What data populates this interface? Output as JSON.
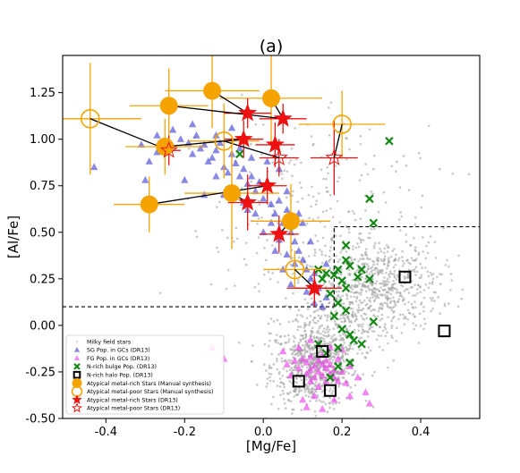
{
  "chart_data": {
    "type": "scatter",
    "title": "(a)",
    "xlabel": "[Mg/Fe]",
    "ylabel": "[Al/Fe]",
    "xlim": [
      -0.51,
      0.55
    ],
    "ylim": [
      -0.5,
      1.45
    ],
    "xticks": [
      "-0.4",
      "-0.2",
      "0.0",
      "0.2",
      "0.4"
    ],
    "xtick_values": [
      -0.4,
      -0.2,
      0.0,
      0.2,
      0.4
    ],
    "yticks": [
      "-0.50",
      "-0.25",
      "0.00",
      "0.25",
      "0.50",
      "0.75",
      "1.00",
      "1.25"
    ],
    "ytick_values": [
      -0.5,
      -0.25,
      0.0,
      0.25,
      0.5,
      0.75,
      1.0,
      1.25
    ],
    "grid": false,
    "legend_position": "lower-left",
    "colors": {
      "field": "#9a9a9a",
      "sg": "#3b3bd0",
      "fg": "#ee33ee",
      "nbulge": "#118811",
      "nhalo": "#000000",
      "orange": "#f5a300",
      "red": "#ee1111"
    },
    "legend": [
      {
        "label": "Milky field stars",
        "marker": "field"
      },
      {
        "label": "SG Pop. in GCs (DR13)",
        "marker": "sg"
      },
      {
        "label": "FG Pop. in GCs (DR13)",
        "marker": "fg"
      },
      {
        "label": "N-rich bulge Pop. (DR13)",
        "marker": "nbulge"
      },
      {
        "label": "N-rich halo Pop. (DR13)",
        "marker": "nhalo"
      },
      {
        "label": "Atypical metal-rich Stars (Manual synthesis)",
        "marker": "orange_filled"
      },
      {
        "label": "Atypical metal-poor Stars (Manual synthesis)",
        "marker": "orange_open"
      },
      {
        "label": "Atypical metal-rich Stars (DR13)",
        "marker": "red_filled"
      },
      {
        "label": "Atypical metal-poor Stars (DR13)",
        "marker": "red_open"
      }
    ],
    "boundary_lines": [
      {
        "style": "dashed",
        "x": [
          -0.51,
          0.18
        ],
        "y": [
          0.1,
          0.1
        ]
      },
      {
        "style": "dashed",
        "x": [
          0.18,
          0.18
        ],
        "y": [
          0.1,
          0.53
        ]
      },
      {
        "style": "dashed",
        "x": [
          0.18,
          0.55
        ],
        "y": [
          0.53,
          0.53
        ]
      }
    ],
    "series": [
      {
        "name": "Milky field stars",
        "role": "field",
        "clusters": [
          {
            "cx": 0.13,
            "cy": -0.22,
            "sx": 0.055,
            "sy": 0.11,
            "n": 700
          },
          {
            "cx": 0.3,
            "cy": 0.23,
            "sx": 0.075,
            "sy": 0.12,
            "n": 550
          },
          {
            "cx": 0.2,
            "cy": 0.03,
            "sx": 0.07,
            "sy": 0.12,
            "n": 300
          },
          {
            "cx": 0.07,
            "cy": 0.55,
            "sx": 0.1,
            "sy": 0.25,
            "n": 160
          },
          {
            "cx": 0.25,
            "cy": 0.75,
            "sx": 0.16,
            "sy": 0.25,
            "n": 90
          }
        ]
      },
      {
        "name": "SG Pop. in GCs (DR13)",
        "role": "sg",
        "points": [
          [
            -0.43,
            0.85
          ],
          [
            -0.31,
            0.97
          ],
          [
            -0.29,
            0.88
          ],
          [
            -0.27,
            0.93
          ],
          [
            -0.25,
            0.98
          ],
          [
            -0.23,
            1.05
          ],
          [
            -0.21,
            1.0
          ],
          [
            -0.19,
            0.98
          ],
          [
            -0.18,
            0.92
          ],
          [
            -0.17,
            1.02
          ],
          [
            -0.16,
            0.95
          ],
          [
            -0.15,
            0.97
          ],
          [
            -0.14,
            0.88
          ],
          [
            -0.13,
            0.9
          ],
          [
            -0.12,
            0.94
          ],
          [
            -0.11,
            0.98
          ],
          [
            -0.1,
            0.85
          ],
          [
            -0.09,
            0.82
          ],
          [
            -0.08,
            0.92
          ],
          [
            -0.07,
            0.87
          ],
          [
            -0.06,
            0.8
          ],
          [
            -0.05,
            0.84
          ],
          [
            -0.04,
            0.76
          ],
          [
            -0.03,
            0.8
          ],
          [
            -0.02,
            0.72
          ],
          [
            -0.01,
            0.77
          ],
          [
            0.0,
            0.68
          ],
          [
            0.01,
            0.74
          ],
          [
            0.02,
            0.65
          ],
          [
            0.03,
            0.6
          ],
          [
            0.04,
            0.67
          ],
          [
            0.05,
            0.55
          ],
          [
            0.06,
            0.62
          ],
          [
            0.07,
            0.5
          ],
          [
            0.08,
            0.45
          ],
          [
            0.09,
            0.4
          ],
          [
            0.1,
            0.35
          ],
          [
            0.11,
            0.3
          ],
          [
            0.12,
            0.25
          ],
          [
            0.13,
            0.28
          ],
          [
            0.14,
            0.2
          ],
          [
            0.02,
            0.55
          ],
          [
            0.04,
            0.46
          ],
          [
            0.06,
            0.38
          ],
          [
            0.08,
            0.33
          ],
          [
            0.0,
            0.5
          ],
          [
            -0.02,
            0.6
          ],
          [
            -0.05,
            0.66
          ],
          [
            -0.08,
            0.74
          ],
          [
            -0.1,
            0.7
          ],
          [
            -0.12,
            0.8
          ],
          [
            -0.2,
            0.78
          ],
          [
            -0.3,
            0.78
          ],
          [
            -0.27,
            1.02
          ],
          [
            -0.15,
            0.7
          ],
          [
            0.05,
            0.3
          ],
          [
            0.07,
            0.22
          ],
          [
            0.03,
            0.4
          ],
          [
            0.11,
            0.18
          ],
          [
            0.15,
            0.1
          ],
          [
            0.16,
            0.15
          ],
          [
            0.13,
            0.12
          ],
          [
            0.01,
            0.88
          ],
          [
            -0.06,
            0.95
          ],
          [
            -0.03,
            0.9
          ],
          [
            0.06,
            0.72
          ],
          [
            0.1,
            0.55
          ],
          [
            0.12,
            0.45
          ],
          [
            0.16,
            0.33
          ],
          [
            0.09,
            0.6
          ],
          [
            -0.12,
            1.02
          ],
          [
            -0.08,
            1.06
          ],
          [
            -0.18,
            1.08
          ],
          [
            0.04,
            0.84
          ],
          [
            -0.04,
            0.62
          ]
        ]
      },
      {
        "name": "FG Pop. in GCs (DR13)",
        "role": "fg",
        "points": [
          [
            -0.13,
            -0.12
          ],
          [
            -0.1,
            -0.18
          ],
          [
            0.08,
            -0.19
          ],
          [
            0.09,
            -0.23
          ],
          [
            0.1,
            -0.18
          ],
          [
            0.11,
            -0.26
          ],
          [
            0.11,
            -0.2
          ],
          [
            0.12,
            -0.24
          ],
          [
            0.12,
            -0.3
          ],
          [
            0.12,
            -0.17
          ],
          [
            0.13,
            -0.22
          ],
          [
            0.13,
            -0.28
          ],
          [
            0.14,
            -0.19
          ],
          [
            0.14,
            -0.25
          ],
          [
            0.14,
            -0.33
          ],
          [
            0.15,
            -0.21
          ],
          [
            0.15,
            -0.27
          ],
          [
            0.15,
            -0.16
          ],
          [
            0.16,
            -0.23
          ],
          [
            0.16,
            -0.3
          ],
          [
            0.16,
            -0.19
          ],
          [
            0.17,
            -0.26
          ],
          [
            0.17,
            -0.21
          ],
          [
            0.18,
            -0.28
          ],
          [
            0.18,
            -0.24
          ],
          [
            0.19,
            -0.3
          ],
          [
            0.19,
            -0.18
          ],
          [
            0.2,
            -0.25
          ],
          [
            0.21,
            -0.31
          ],
          [
            0.22,
            -0.22
          ],
          [
            0.24,
            -0.28
          ],
          [
            0.26,
            -0.36
          ],
          [
            0.27,
            -0.42
          ],
          [
            0.1,
            -0.4
          ],
          [
            0.13,
            -0.38
          ],
          [
            0.18,
            -0.4
          ],
          [
            0.11,
            -0.44
          ],
          [
            0.07,
            -0.27
          ],
          [
            0.06,
            -0.21
          ],
          [
            0.2,
            -0.13
          ],
          [
            0.17,
            -0.12
          ],
          [
            0.12,
            -0.08
          ],
          [
            0.09,
            -0.12
          ],
          [
            0.14,
            -0.1
          ],
          [
            0.22,
            -0.38
          ],
          [
            0.15,
            -0.45
          ],
          [
            0.05,
            -0.14
          ]
        ]
      },
      {
        "name": "N-rich bulge Pop. (DR13)",
        "role": "nbulge",
        "points": [
          [
            0.32,
            0.99
          ],
          [
            -0.06,
            0.92
          ],
          [
            0.27,
            0.68
          ],
          [
            0.28,
            0.55
          ],
          [
            0.21,
            0.43
          ],
          [
            0.21,
            0.35
          ],
          [
            0.22,
            0.32
          ],
          [
            0.25,
            0.3
          ],
          [
            0.19,
            0.3
          ],
          [
            0.14,
            0.3
          ],
          [
            0.15,
            0.25
          ],
          [
            0.16,
            0.28
          ],
          [
            0.18,
            0.27
          ],
          [
            0.2,
            0.24
          ],
          [
            0.24,
            0.26
          ],
          [
            0.27,
            0.25
          ],
          [
            0.21,
            0.2
          ],
          [
            0.17,
            0.17
          ],
          [
            0.19,
            0.12
          ],
          [
            0.18,
            0.05
          ],
          [
            0.21,
            0.08
          ],
          [
            0.2,
            -0.02
          ],
          [
            0.22,
            -0.05
          ],
          [
            0.28,
            0.02
          ],
          [
            0.23,
            -0.08
          ],
          [
            0.25,
            -0.1
          ],
          [
            0.19,
            -0.12
          ],
          [
            0.16,
            -0.15
          ],
          [
            0.22,
            -0.2
          ],
          [
            0.19,
            -0.22
          ],
          [
            0.17,
            -0.28
          ],
          [
            0.14,
            -0.1
          ]
        ]
      },
      {
        "name": "N-rich halo Pop. (DR13)",
        "role": "nhalo",
        "points": [
          [
            0.36,
            0.26
          ],
          [
            0.46,
            -0.03
          ],
          [
            0.15,
            -0.14
          ],
          [
            0.09,
            -0.3
          ],
          [
            0.17,
            -0.35
          ]
        ]
      },
      {
        "name": "Atypical metal-rich Stars (Manual synthesis)",
        "role": "orange_filled",
        "points": [
          [
            -0.13,
            1.26,
            0.12,
            0.2
          ],
          [
            0.02,
            1.22,
            0.13,
            0.25
          ],
          [
            -0.24,
            1.18,
            0.1,
            0.2
          ],
          [
            -0.25,
            0.96,
            0.1,
            0.15
          ],
          [
            -0.29,
            0.65,
            0.09,
            0.15
          ],
          [
            -0.08,
            0.71,
            0.12,
            0.3
          ],
          [
            0.07,
            0.56,
            0.1,
            0.2
          ]
        ]
      },
      {
        "name": "Atypical metal-poor Stars (Manual synthesis)",
        "role": "orange_open",
        "points": [
          [
            -0.44,
            1.11,
            0.13,
            0.3
          ],
          [
            -0.1,
            0.99,
            0.09,
            0.2
          ],
          [
            0.2,
            1.08,
            0.11,
            0.18
          ],
          [
            0.08,
            0.3,
            0.08,
            0.1
          ]
        ]
      },
      {
        "name": "Atypical metal-rich Stars (DR13)",
        "role": "red_filled",
        "points": [
          [
            -0.04,
            1.14,
            0.06,
            0.08
          ],
          [
            0.05,
            1.11,
            0.06,
            0.08
          ],
          [
            -0.05,
            1.0,
            0.05,
            0.1
          ],
          [
            0.03,
            0.97,
            0.05,
            0.12
          ],
          [
            0.01,
            0.75,
            0.05,
            0.1
          ],
          [
            -0.04,
            0.66,
            0.05,
            0.15
          ],
          [
            0.04,
            0.49,
            0.05,
            0.1
          ],
          [
            0.13,
            0.2,
            0.07,
            0.1
          ]
        ]
      },
      {
        "name": "Atypical metal-poor Stars (DR13)",
        "role": "red_open",
        "points": [
          [
            0.18,
            0.9,
            0.06,
            0.2
          ],
          [
            0.04,
            0.9,
            0.05,
            0.1
          ],
          [
            -0.24,
            0.94,
            0.03,
            0.08
          ],
          [
            0.13,
            0.2,
            0.05,
            0.06
          ]
        ]
      }
    ],
    "connections": [
      [
        [
          -0.13,
          1.26
        ],
        [
          -0.04,
          1.14
        ]
      ],
      [
        [
          0.02,
          1.22
        ],
        [
          0.05,
          1.11
        ]
      ],
      [
        [
          -0.24,
          1.18
        ],
        [
          0.05,
          1.11
        ]
      ],
      [
        [
          -0.25,
          0.96
        ],
        [
          -0.05,
          1.0
        ]
      ],
      [
        [
          -0.44,
          1.11
        ],
        [
          -0.24,
          0.94
        ]
      ],
      [
        [
          -0.1,
          0.99
        ],
        [
          0.04,
          0.9
        ]
      ],
      [
        [
          0.2,
          1.08
        ],
        [
          0.18,
          0.9
        ]
      ],
      [
        [
          -0.29,
          0.65
        ],
        [
          0.01,
          0.75
        ]
      ],
      [
        [
          -0.08,
          0.71
        ],
        [
          -0.04,
          0.66
        ]
      ],
      [
        [
          0.07,
          0.56
        ],
        [
          0.04,
          0.49
        ]
      ],
      [
        [
          0.08,
          0.3
        ],
        [
          0.13,
          0.2
        ]
      ]
    ]
  }
}
